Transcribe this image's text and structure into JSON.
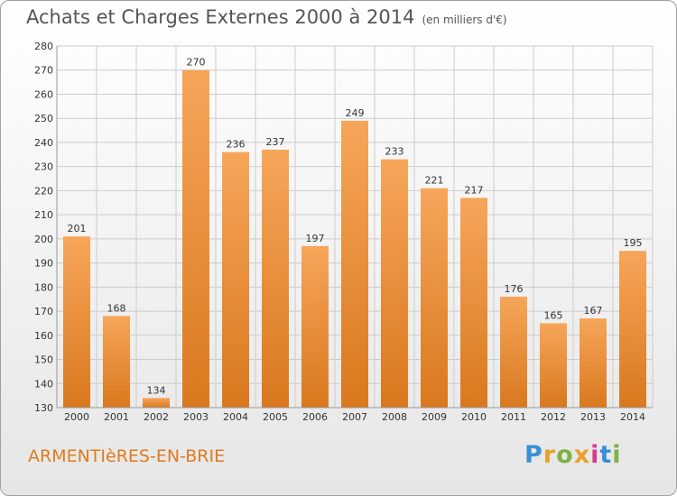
{
  "header": {
    "title": "Achats et Charges Externes 2000 à 2014",
    "unit": "(en milliers d'€)"
  },
  "footer": {
    "city": "ARMENTIèRES-EN-BRIE",
    "logo": "Proxiti",
    "logo_colors": [
      "#3b8fd6",
      "#e9a12a",
      "#7cb342",
      "#e9a12a",
      "#d63a8a",
      "#3b8fd6",
      "#7cb342"
    ]
  },
  "colors": {
    "bar_light": "#f6a65a",
    "bar_dark": "#d9781e",
    "grid": "#cccccc",
    "city": "#e07b1f"
  },
  "chart_data": {
    "type": "bar",
    "categories": [
      "2000",
      "2001",
      "2002",
      "2003",
      "2004",
      "2005",
      "2006",
      "2007",
      "2008",
      "2009",
      "2010",
      "2011",
      "2012",
      "2013",
      "2014"
    ],
    "values": [
      201,
      168,
      134,
      270,
      236,
      237,
      197,
      249,
      233,
      221,
      217,
      176,
      165,
      167,
      195
    ],
    "ylim": [
      130,
      280
    ],
    "yticks": [
      130,
      140,
      150,
      160,
      170,
      180,
      190,
      200,
      210,
      220,
      230,
      240,
      250,
      260,
      270,
      280
    ],
    "grid": true,
    "title": "Achats et Charges Externes 2000 à 2014",
    "xlabel": "",
    "ylabel": ""
  }
}
